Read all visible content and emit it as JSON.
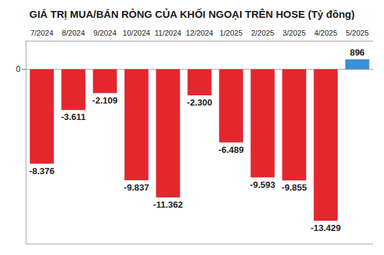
{
  "chart_data": {
    "type": "bar",
    "title": "GIÁ TRỊ MUA/BÁN RÒNG CỦA KHỐI NGOẠI TRÊN HOSE (Tỷ đồng)",
    "categories": [
      "7/2024",
      "8/2024",
      "9/2024",
      "10/2024",
      "11/2024",
      "12/2024",
      "1/2025",
      "2/2025",
      "3/2025",
      "4/2025",
      "5/2025"
    ],
    "values": [
      -8376,
      -3611,
      -2109,
      -9837,
      -11362,
      -2300,
      -6489,
      -9593,
      -9855,
      -13429,
      896
    ],
    "value_labels": [
      "-8.376",
      "-3.611",
      "-2.109",
      "-9.837",
      "-11.362",
      "-2.300",
      "-6.489",
      "-9.593",
      "-9.855",
      "-13.429",
      "896"
    ],
    "colors": [
      "#e4262d",
      "#e4262d",
      "#e4262d",
      "#e4262d",
      "#e4262d",
      "#e4262d",
      "#e4262d",
      "#e4262d",
      "#e4262d",
      "#e4262d",
      "#3d8fd6"
    ],
    "ylim": [
      -15500,
      2500
    ],
    "yticks": [
      0
    ],
    "grid": true,
    "data_labels": true
  }
}
